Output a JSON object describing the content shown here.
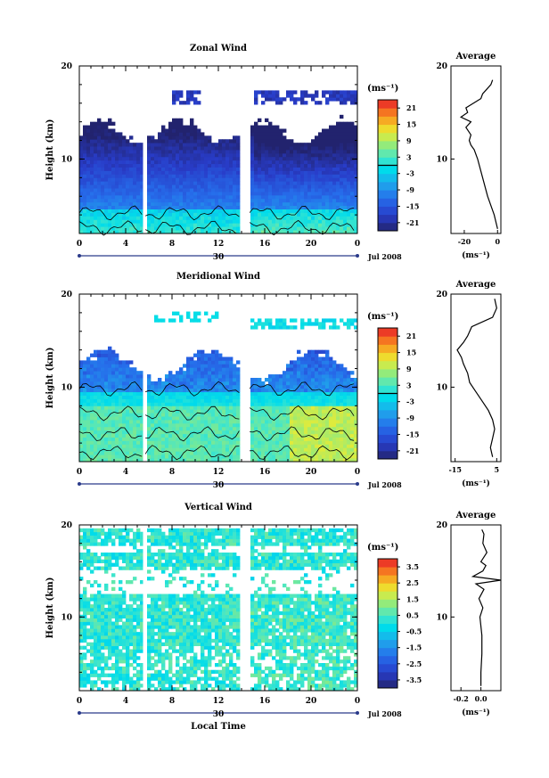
{
  "chart_data": [
    {
      "type": "heatmap",
      "title": "Zonal Wind",
      "ylabel": "Height (km)",
      "ylim": [
        2,
        20
      ],
      "yticks": [
        "20",
        "10"
      ],
      "xlim": [
        0,
        24
      ],
      "xticks": [
        "0",
        "4",
        "8",
        "12",
        "16",
        "20",
        "0"
      ],
      "day_label": "30",
      "date_label": "Jul 2008",
      "colorbar": {
        "unit_label": "(ms⁻¹)",
        "ticks": [
          "21",
          "15",
          "9",
          "3",
          "-3",
          "-9",
          "-15",
          "-21"
        ],
        "range": [
          -24,
          24
        ],
        "contour_level": 0
      },
      "data_gaps_hours": [
        [
          5.5,
          5.7
        ],
        [
          14.0,
          14.7
        ]
      ],
      "profile": {
        "title": "Average",
        "xticks": [
          "-20",
          "0"
        ],
        "xlim": [
          -28,
          2
        ],
        "xlabel": "(ms⁻¹)",
        "height_km": [
          2.5,
          4,
          6,
          8,
          10,
          11,
          11.5,
          12,
          12.6,
          13.4,
          14,
          14.5,
          15,
          15.5,
          16.5,
          17,
          18,
          18.5
        ],
        "value": [
          0,
          -2,
          -6,
          -9,
          -12,
          -14,
          -16,
          -17,
          -16,
          -19,
          -16,
          -22,
          -18,
          -19,
          -10,
          -9,
          -4,
          -3
        ]
      }
    },
    {
      "type": "heatmap",
      "title": "Meridional Wind",
      "ylabel": "Height (km)",
      "ylim": [
        2,
        20
      ],
      "yticks": [
        "20",
        "10"
      ],
      "xlim": [
        0,
        24
      ],
      "xticks": [
        "0",
        "4",
        "8",
        "12",
        "16",
        "20",
        "0"
      ],
      "day_label": "30",
      "date_label": "Jul 2008",
      "colorbar": {
        "unit_label": "(ms⁻¹)",
        "ticks": [
          "21",
          "15",
          "9",
          "3",
          "-3",
          "-9",
          "-15",
          "-21"
        ],
        "range": [
          -24,
          24
        ],
        "contour_level": 0
      },
      "data_gaps_hours": [
        [
          5.5,
          5.7
        ],
        [
          14.0,
          14.7
        ]
      ],
      "profile": {
        "title": "Average",
        "xticks": [
          "-15",
          "5"
        ],
        "xlim": [
          -17,
          7
        ],
        "xlabel": "(ms⁻¹)",
        "height_km": [
          2.5,
          3.5,
          4.5,
          5.5,
          6.5,
          7.5,
          8.5,
          9.5,
          10.5,
          11.5,
          12.5,
          13.2,
          14,
          14.8,
          15.5,
          16.5,
          17.5,
          18.5,
          19.5
        ],
        "value": [
          3,
          2,
          3,
          4,
          3,
          1,
          -2,
          -5,
          -8,
          -9,
          -11,
          -12,
          -14,
          -11,
          -9,
          -7,
          3,
          5,
          4
        ]
      }
    },
    {
      "type": "heatmap",
      "title": "Vertical Wind",
      "ylabel": "Height (km)",
      "xlabel": "Local Time",
      "ylim": [
        2,
        20
      ],
      "yticks": [
        "20",
        "10"
      ],
      "xlim": [
        0,
        24
      ],
      "xticks": [
        "0",
        "4",
        "8",
        "12",
        "16",
        "20",
        "0"
      ],
      "day_label": "30",
      "date_label": "Jul 2008",
      "colorbar": {
        "unit_label": "(ms⁻¹)",
        "ticks": [
          "3.5",
          "2.5",
          "1.5",
          "0.5",
          "-0.5",
          "-1.5",
          "-2.5",
          "-3.5"
        ],
        "range": [
          -4,
          4
        ]
      },
      "data_gaps_hours": [
        [
          5.5,
          5.7
        ],
        [
          14.0,
          14.7
        ]
      ],
      "profile": {
        "title": "Average",
        "xticks": [
          "-0.2",
          "0.0"
        ],
        "xlim": [
          -0.3,
          0.2
        ],
        "xlabel": "(ms⁻¹)",
        "height_km": [
          2.5,
          4,
          6,
          8,
          10,
          11,
          12,
          13,
          13.6,
          14,
          14.4,
          15,
          15.6,
          16,
          17,
          18,
          19,
          19.5
        ],
        "value": [
          0.0,
          0.0,
          0.01,
          0.01,
          -0.01,
          0.02,
          -0.02,
          0.03,
          -0.05,
          0.2,
          -0.08,
          0.02,
          0.05,
          0.0,
          0.06,
          0.02,
          0.03,
          0.01
        ]
      }
    }
  ]
}
